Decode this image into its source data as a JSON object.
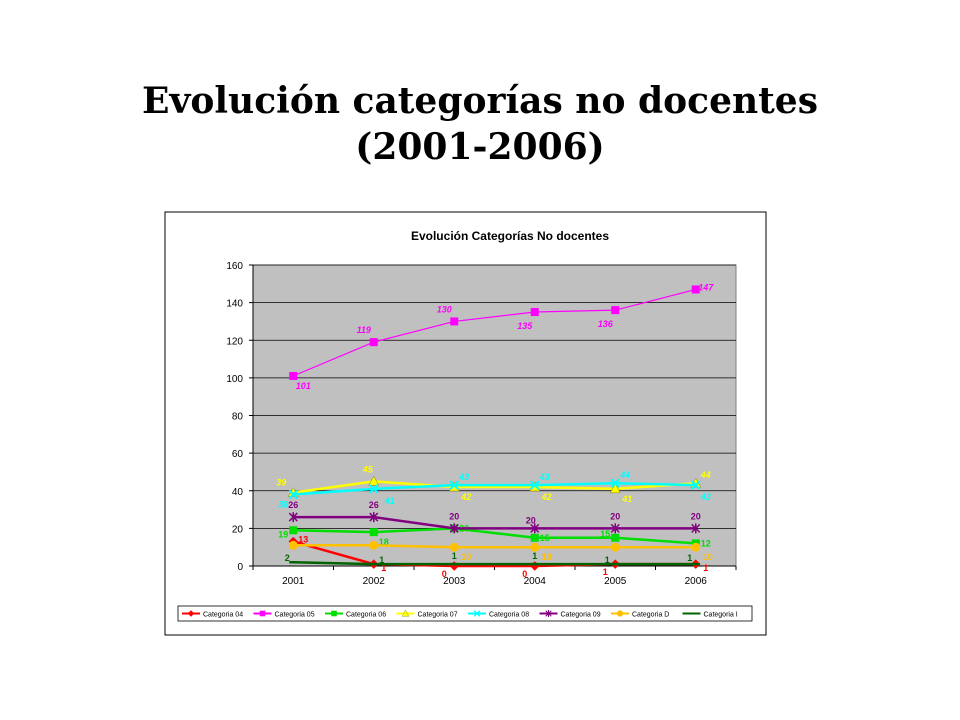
{
  "slide": {
    "title_line1": "Evolución categorías no docentes",
    "title_line2": "(2001-2006)"
  },
  "chart_data": {
    "type": "line",
    "title": "Evolución Categorías No docentes",
    "xlabel": "",
    "ylabel": "",
    "categories": [
      "2001",
      "2002",
      "2003",
      "2004",
      "2005",
      "2006"
    ],
    "ylim": [
      0,
      160
    ],
    "yticks": [
      0,
      20,
      40,
      60,
      80,
      100,
      120,
      140,
      160
    ],
    "grid": true,
    "plot_background": "#c0c0c0",
    "legend_position": "bottom",
    "series": [
      {
        "name": "Categoria 04",
        "values": [
          13,
          1,
          0,
          0,
          1,
          1
        ],
        "color": "#ff0000",
        "marker": "diamond",
        "labels": [
          "13",
          "1",
          "0",
          "0",
          "1",
          "1"
        ]
      },
      {
        "name": "Categoria 05",
        "values": [
          101,
          119,
          130,
          135,
          136,
          147
        ],
        "color": "#ff00ff",
        "marker": "square",
        "labels": [
          "101",
          "119",
          "130",
          "135",
          "136",
          "147"
        ]
      },
      {
        "name": "Categoria 06",
        "values": [
          19,
          18,
          20,
          15,
          15,
          12
        ],
        "color": "#00dd00",
        "marker": "square",
        "labels": [
          "19",
          "18",
          "20",
          "15",
          "15",
          "12"
        ]
      },
      {
        "name": "Categoria 07",
        "values": [
          39,
          45,
          42,
          42,
          41,
          44
        ],
        "color": "#ffff00",
        "marker": "triangle",
        "labels": [
          "39",
          "45",
          "42",
          "42",
          "41",
          "44"
        ]
      },
      {
        "name": "Categoria 08",
        "values": [
          38,
          41,
          43,
          43,
          44,
          43
        ],
        "color": "#00ffff",
        "marker": "x",
        "labels": [
          "38",
          "41",
          "43",
          "43",
          "44",
          "43"
        ]
      },
      {
        "name": "Categoria 09",
        "values": [
          26,
          26,
          20,
          20,
          20,
          20
        ],
        "color": "#800080",
        "marker": "star",
        "labels": [
          "26",
          "26",
          "20",
          "20",
          "20",
          "20"
        ]
      },
      {
        "name": "Categoria D",
        "values": [
          11,
          11,
          10,
          10,
          10,
          10
        ],
        "color": "#ffc000",
        "marker": "circle",
        "labels": [
          "",
          "",
          "10",
          "10",
          "",
          "10"
        ]
      },
      {
        "name": "Categoria I",
        "values": [
          2,
          1,
          1,
          1,
          1,
          1
        ],
        "color": "#006400",
        "marker": "dash",
        "labels": [
          "2",
          "1",
          "1",
          "1",
          "1",
          "1"
        ]
      }
    ]
  }
}
